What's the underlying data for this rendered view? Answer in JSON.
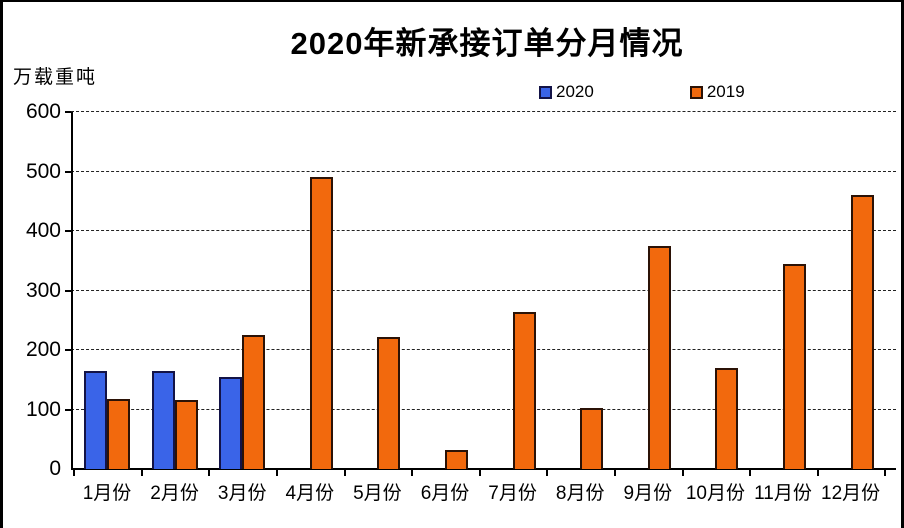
{
  "chart_data": {
    "type": "bar",
    "title": "2020年新承接订单分月情况",
    "ylabel": "万载重吨",
    "xlabel": "",
    "categories": [
      "1月份",
      "2月份",
      "3月份",
      "4月份",
      "5月份",
      "6月份",
      "7月份",
      "8月份",
      "9月份",
      "10月份",
      "11月份",
      "12月份"
    ],
    "series": [
      {
        "name": "2020",
        "color": "#3a64e8",
        "border_color": "#131347",
        "values": [
          165,
          165,
          155,
          null,
          null,
          null,
          null,
          null,
          null,
          null,
          null,
          null
        ]
      },
      {
        "name": "2019",
        "color": "#f2690d",
        "border_color": "#2b1206",
        "values": [
          117,
          116,
          225,
          490,
          222,
          32,
          264,
          102,
          374,
          170,
          345,
          460
        ]
      }
    ],
    "ylim": [
      0,
      600
    ],
    "yticks": [
      0,
      100,
      200,
      300,
      400,
      500,
      600
    ],
    "grid": "horizontal-dashed",
    "legend_position": "top-center"
  }
}
